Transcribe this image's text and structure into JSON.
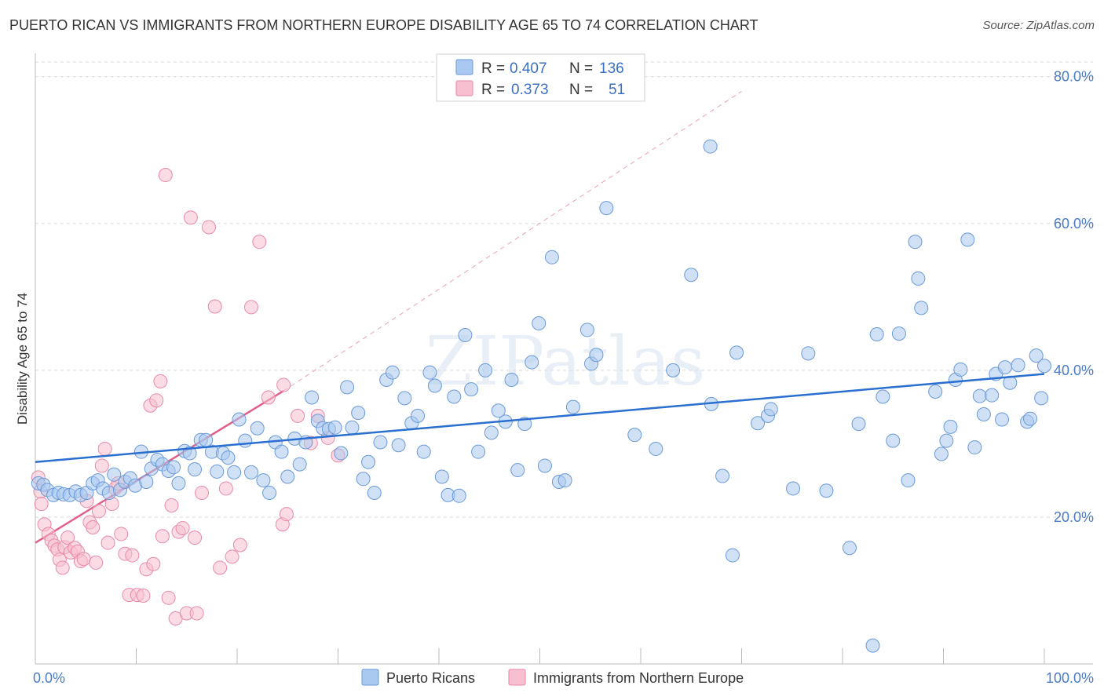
{
  "chart_data": {
    "type": "scatter",
    "title": "PUERTO RICAN VS IMMIGRANTS FROM NORTHERN EUROPE DISABILITY AGE 65 TO 74 CORRELATION CHART",
    "source": "Source: ZipAtlas.com",
    "xlabel": "",
    "ylabel": "Disability Age 65 to 74",
    "xlim": [
      0,
      100
    ],
    "ylim": [
      0,
      82
    ],
    "x_tick_labels": [
      {
        "value": 0,
        "label": "0.0%"
      },
      {
        "value": 100,
        "label": "100.0%"
      }
    ],
    "y_ticks": [
      {
        "value": 20,
        "label": "20.0%"
      },
      {
        "value": 40,
        "label": "40.0%"
      },
      {
        "value": 60,
        "label": "60.0%"
      },
      {
        "value": 80,
        "label": "80.0%"
      }
    ],
    "watermark": "ZIPatlas",
    "colors": {
      "blue_fill": "#a9c8ef",
      "blue_stroke": "#6a9ad8",
      "blue_line": "#2a6fd0",
      "pink_fill": "#f7bfd0",
      "pink_stroke": "#e98aa8",
      "pink_line": "#e0608a",
      "grid": "#d9d9d9",
      "tick_text": "#4a7bc8"
    },
    "legend": {
      "entries": [
        {
          "r_label": "R =",
          "r_value": "0.407",
          "n_label": "N =",
          "n_value": "136"
        },
        {
          "r_label": "R =",
          "r_value": "0.373",
          "n_label": "N =",
          "n_value": "51"
        }
      ]
    },
    "series": [
      {
        "name": "Puerto Ricans",
        "trend": {
          "x0": 0,
          "y0": 27.5,
          "x1": 100,
          "y1": 39.5
        },
        "points": [
          [
            0.3,
            24.6
          ],
          [
            0.8,
            24.4
          ],
          [
            1.2,
            23.7
          ],
          [
            1.8,
            23.0
          ],
          [
            2.3,
            23.3
          ],
          [
            2.8,
            23.1
          ],
          [
            3.4,
            23.0
          ],
          [
            4.0,
            23.5
          ],
          [
            4.5,
            23.0
          ],
          [
            5.1,
            23.3
          ],
          [
            5.7,
            24.6
          ],
          [
            6.2,
            25.0
          ],
          [
            6.7,
            23.9
          ],
          [
            7.3,
            23.3
          ],
          [
            7.8,
            25.8
          ],
          [
            8.4,
            23.7
          ],
          [
            8.9,
            24.8
          ],
          [
            9.4,
            25.3
          ],
          [
            9.9,
            24.3
          ],
          [
            10.5,
            28.9
          ],
          [
            11.0,
            24.8
          ],
          [
            11.5,
            26.6
          ],
          [
            12.1,
            27.8
          ],
          [
            12.6,
            27.2
          ],
          [
            13.2,
            26.3
          ],
          [
            13.7,
            26.8
          ],
          [
            14.2,
            24.6
          ],
          [
            14.8,
            29.0
          ],
          [
            15.3,
            28.7
          ],
          [
            15.8,
            26.5
          ],
          [
            16.4,
            30.5
          ],
          [
            16.9,
            30.5
          ],
          [
            17.5,
            28.9
          ],
          [
            18.0,
            26.2
          ],
          [
            18.6,
            28.7
          ],
          [
            19.1,
            28.1
          ],
          [
            19.7,
            26.1
          ],
          [
            20.2,
            33.3
          ],
          [
            20.8,
            30.4
          ],
          [
            21.4,
            26.1
          ],
          [
            22.0,
            32.1
          ],
          [
            22.6,
            25.0
          ],
          [
            23.2,
            23.3
          ],
          [
            23.8,
            30.2
          ],
          [
            24.4,
            28.9
          ],
          [
            25.0,
            25.5
          ],
          [
            25.7,
            30.7
          ],
          [
            26.2,
            27.2
          ],
          [
            26.8,
            30.2
          ],
          [
            27.4,
            36.3
          ],
          [
            28.0,
            33.1
          ],
          [
            28.5,
            32.1
          ],
          [
            29.1,
            32.0
          ],
          [
            29.7,
            32.2
          ],
          [
            30.3,
            28.7
          ],
          [
            30.9,
            37.7
          ],
          [
            31.4,
            32.2
          ],
          [
            32.0,
            34.2
          ],
          [
            32.5,
            25.2
          ],
          [
            33.0,
            27.5
          ],
          [
            33.6,
            23.3
          ],
          [
            34.2,
            30.2
          ],
          [
            34.8,
            38.7
          ],
          [
            35.4,
            39.7
          ],
          [
            36.0,
            29.8
          ],
          [
            36.6,
            36.2
          ],
          [
            37.3,
            32.8
          ],
          [
            37.9,
            33.8
          ],
          [
            38.5,
            28.9
          ],
          [
            39.1,
            39.7
          ],
          [
            39.6,
            37.9
          ],
          [
            40.3,
            25.5
          ],
          [
            40.9,
            23.0
          ],
          [
            41.5,
            36.4
          ],
          [
            42.0,
            22.9
          ],
          [
            42.6,
            44.8
          ],
          [
            43.2,
            37.4
          ],
          [
            43.9,
            28.9
          ],
          [
            44.6,
            40.0
          ],
          [
            45.2,
            31.5
          ],
          [
            45.9,
            34.5
          ],
          [
            46.6,
            33.0
          ],
          [
            47.2,
            38.7
          ],
          [
            47.8,
            26.4
          ],
          [
            48.5,
            32.7
          ],
          [
            49.2,
            41.1
          ],
          [
            49.9,
            46.4
          ],
          [
            50.5,
            27.0
          ],
          [
            51.2,
            55.4
          ],
          [
            51.9,
            24.8
          ],
          [
            52.5,
            25.0
          ],
          [
            53.3,
            35.0
          ],
          [
            54.7,
            45.5
          ],
          [
            55.1,
            40.9
          ],
          [
            55.6,
            42.1
          ],
          [
            56.6,
            62.1
          ],
          [
            59.4,
            31.2
          ],
          [
            61.5,
            29.3
          ],
          [
            63.2,
            40.0
          ],
          [
            65.0,
            53.0
          ],
          [
            66.9,
            70.5
          ],
          [
            67.0,
            35.4
          ],
          [
            68.1,
            25.6
          ],
          [
            69.1,
            14.8
          ],
          [
            69.5,
            42.4
          ],
          [
            71.6,
            32.8
          ],
          [
            72.6,
            33.8
          ],
          [
            72.9,
            34.7
          ],
          [
            75.1,
            23.9
          ],
          [
            76.6,
            42.3
          ],
          [
            78.4,
            23.6
          ],
          [
            80.7,
            15.8
          ],
          [
            81.6,
            32.7
          ],
          [
            83.0,
            2.5
          ],
          [
            83.4,
            44.9
          ],
          [
            84.0,
            36.4
          ],
          [
            85.0,
            30.4
          ],
          [
            85.6,
            45.0
          ],
          [
            86.5,
            25.0
          ],
          [
            87.2,
            57.5
          ],
          [
            87.5,
            52.5
          ],
          [
            87.8,
            48.5
          ],
          [
            89.2,
            37.1
          ],
          [
            89.8,
            28.6
          ],
          [
            90.3,
            30.4
          ],
          [
            90.7,
            32.3
          ],
          [
            91.2,
            38.7
          ],
          [
            91.7,
            40.1
          ],
          [
            92.4,
            57.8
          ],
          [
            93.1,
            29.5
          ],
          [
            93.6,
            36.5
          ],
          [
            94.0,
            34.0
          ],
          [
            94.8,
            36.6
          ],
          [
            95.2,
            39.5
          ],
          [
            95.8,
            33.3
          ],
          [
            96.1,
            40.4
          ],
          [
            96.6,
            38.3
          ],
          [
            97.4,
            40.7
          ],
          [
            98.3,
            33.0
          ],
          [
            98.6,
            33.4
          ],
          [
            99.2,
            42.0
          ],
          [
            99.7,
            36.2
          ],
          [
            100.0,
            40.6
          ]
        ]
      },
      {
        "name": "Immigrants from Northern Europe",
        "trend": {
          "x0": 0,
          "y0": 16.5,
          "x1": 24.6,
          "y1": 37.2
        },
        "trend_extended": {
          "x0": 24.6,
          "y0": 37.2,
          "x1": 70,
          "y1": 78
        },
        "points": [
          [
            0.3,
            25.4
          ],
          [
            0.5,
            23.5
          ],
          [
            0.6,
            21.8
          ],
          [
            0.9,
            19.0
          ],
          [
            1.3,
            17.7
          ],
          [
            1.6,
            16.8
          ],
          [
            1.9,
            16.1
          ],
          [
            2.2,
            15.6
          ],
          [
            2.4,
            14.2
          ],
          [
            2.7,
            13.1
          ],
          [
            2.9,
            15.9
          ],
          [
            3.2,
            17.2
          ],
          [
            3.5,
            15.2
          ],
          [
            3.9,
            15.8
          ],
          [
            4.2,
            15.3
          ],
          [
            4.5,
            14.0
          ],
          [
            4.8,
            14.3
          ],
          [
            5.1,
            22.2
          ],
          [
            5.4,
            19.3
          ],
          [
            5.7,
            18.6
          ],
          [
            6.0,
            13.8
          ],
          [
            6.3,
            20.8
          ],
          [
            6.6,
            27.0
          ],
          [
            6.9,
            29.3
          ],
          [
            7.2,
            16.5
          ],
          [
            7.6,
            21.8
          ],
          [
            7.9,
            23.9
          ],
          [
            8.2,
            24.6
          ],
          [
            8.5,
            17.7
          ],
          [
            8.9,
            15.0
          ],
          [
            9.3,
            9.4
          ],
          [
            9.6,
            14.8
          ],
          [
            10.1,
            9.4
          ],
          [
            10.7,
            9.3
          ],
          [
            11.0,
            12.9
          ],
          [
            11.4,
            35.2
          ],
          [
            11.7,
            13.6
          ],
          [
            12.0,
            35.9
          ],
          [
            12.4,
            38.5
          ],
          [
            12.6,
            17.4
          ],
          [
            12.9,
            66.6
          ],
          [
            13.2,
            9.0
          ],
          [
            13.5,
            21.6
          ],
          [
            13.9,
            6.2
          ],
          [
            14.2,
            18.0
          ],
          [
            14.6,
            18.5
          ],
          [
            15.0,
            6.9
          ],
          [
            15.4,
            60.8
          ],
          [
            15.8,
            17.2
          ],
          [
            16.0,
            6.9
          ],
          [
            16.5,
            23.3
          ],
          [
            17.2,
            59.5
          ],
          [
            17.8,
            48.7
          ],
          [
            18.3,
            13.1
          ],
          [
            18.9,
            23.9
          ],
          [
            19.5,
            14.6
          ],
          [
            20.3,
            16.2
          ],
          [
            21.4,
            48.6
          ],
          [
            22.2,
            57.5
          ],
          [
            23.1,
            36.3
          ],
          [
            24.6,
            38.0
          ],
          [
            24.5,
            19.0
          ],
          [
            24.9,
            20.4
          ],
          [
            26.0,
            33.8
          ],
          [
            27.3,
            30.1
          ],
          [
            28.0,
            33.8
          ],
          [
            29.0,
            30.8
          ],
          [
            30.0,
            28.4
          ]
        ]
      }
    ]
  }
}
